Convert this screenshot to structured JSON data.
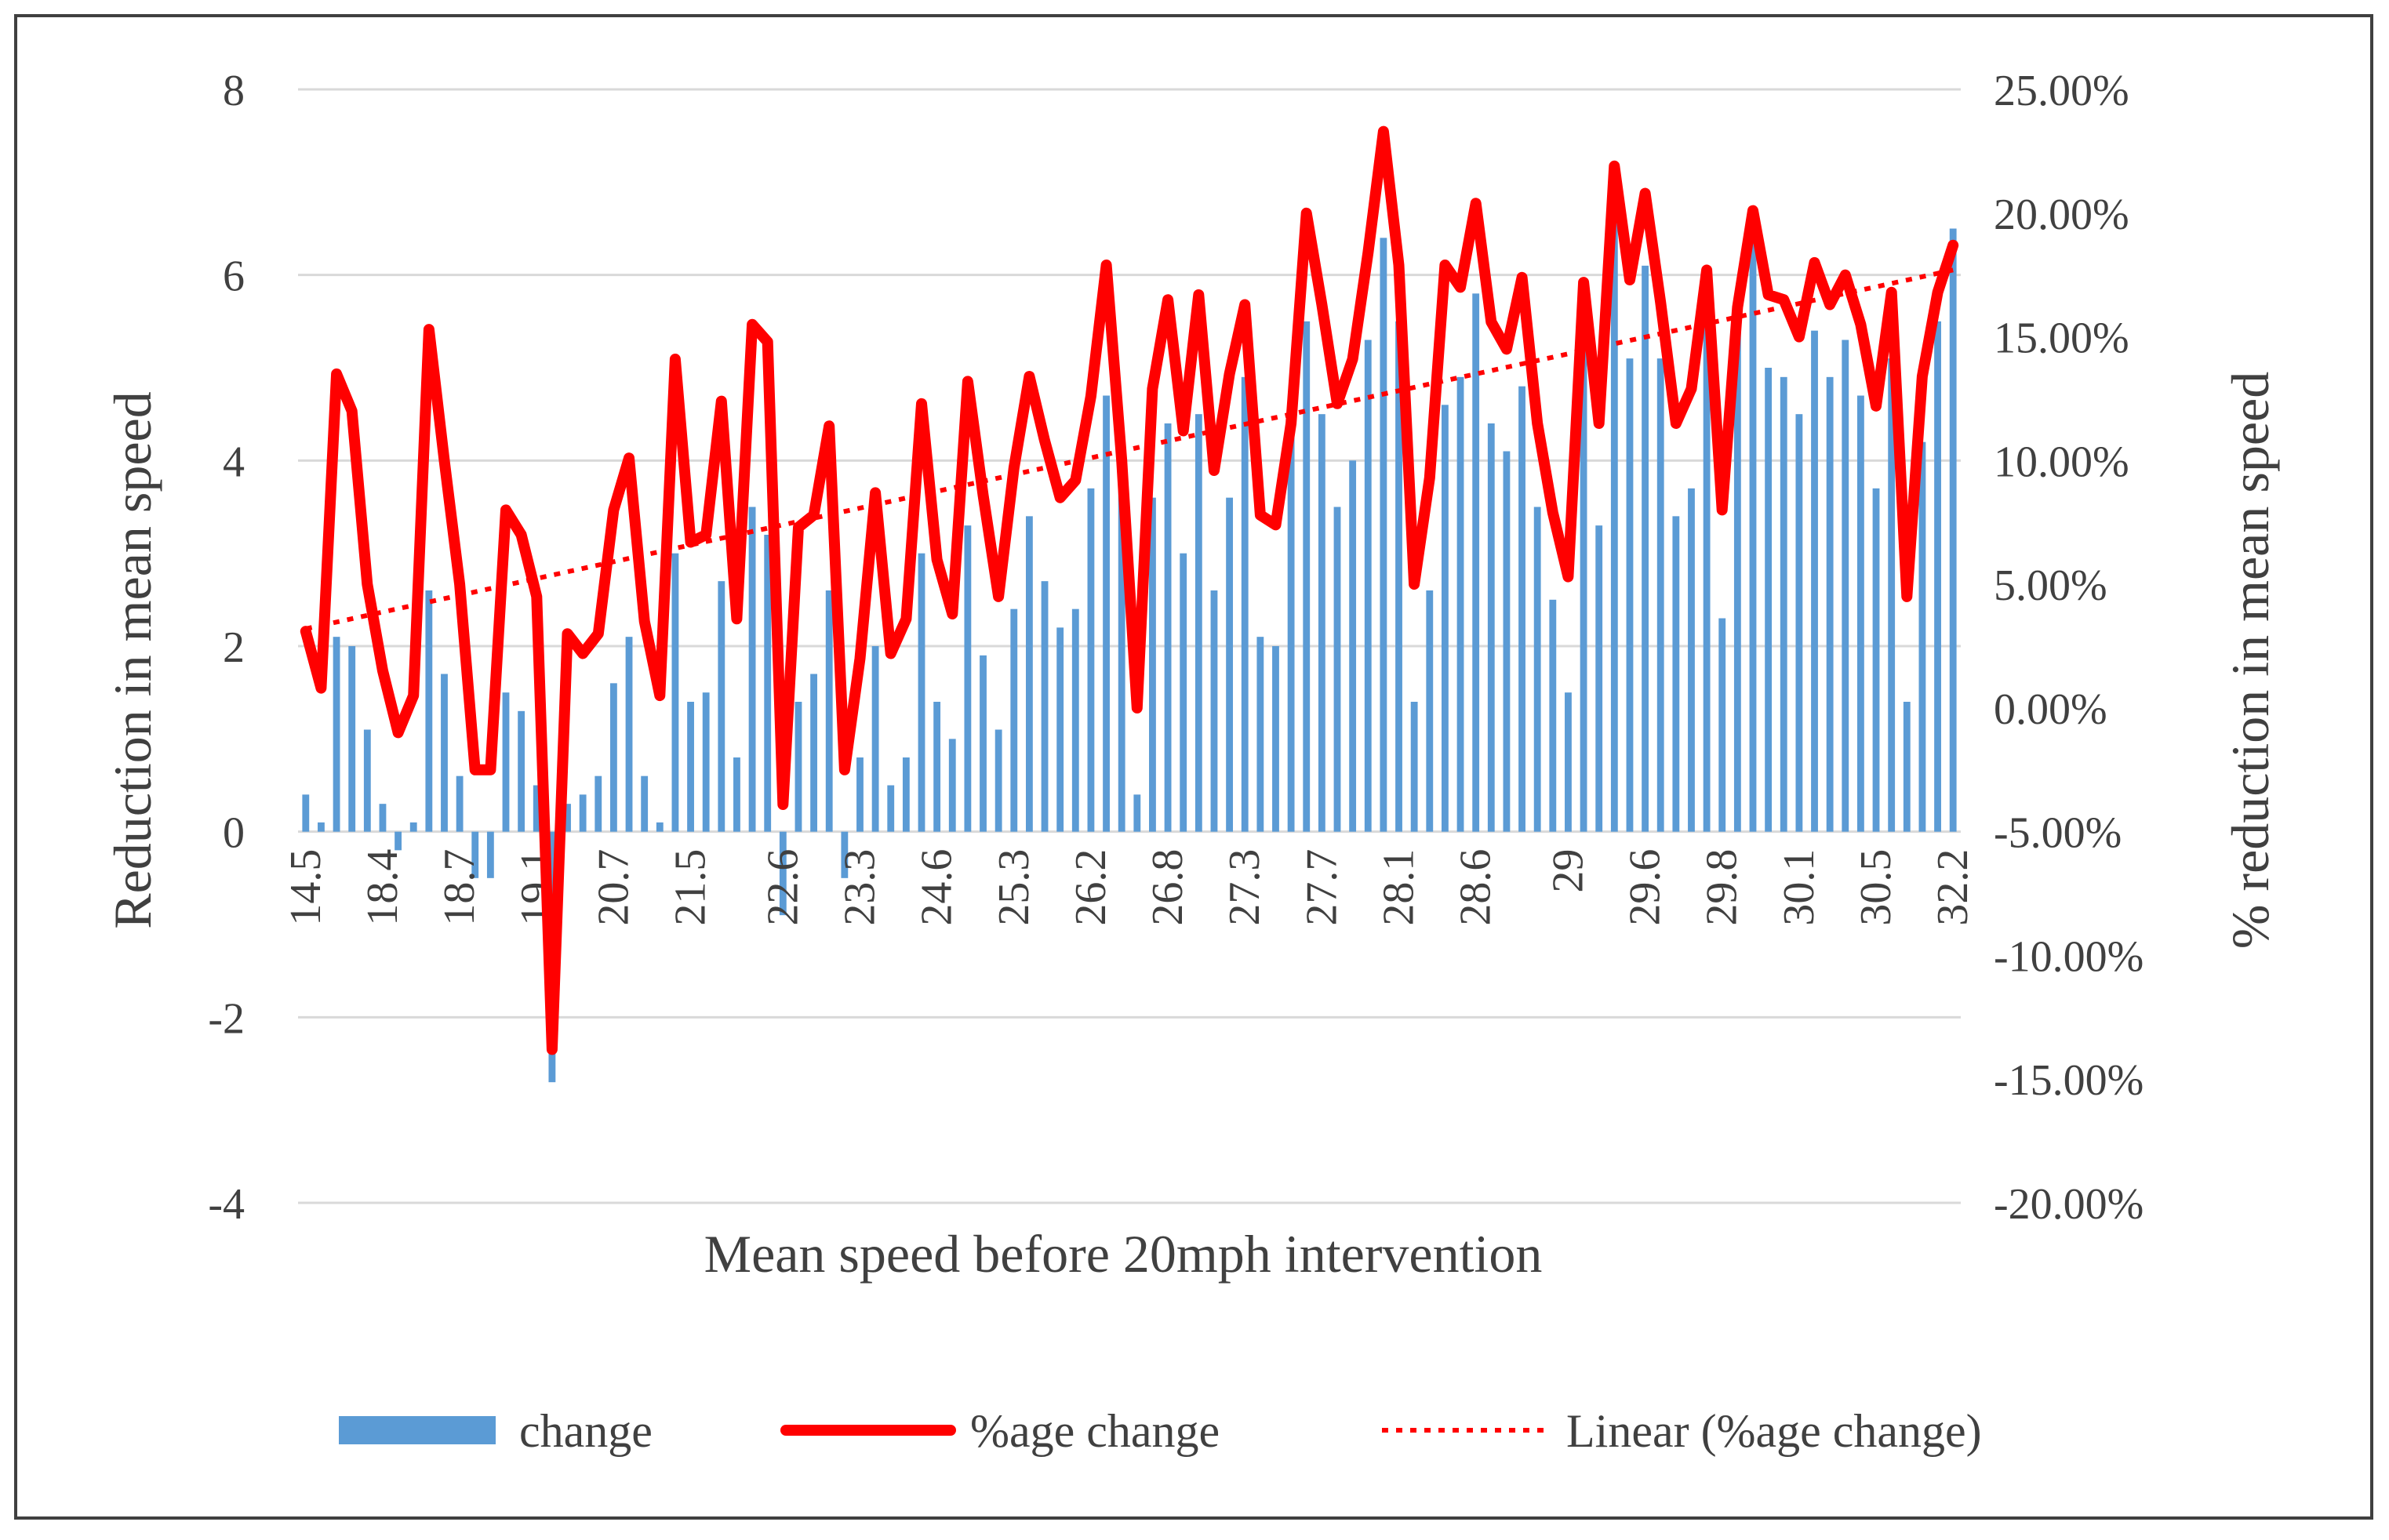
{
  "chart_data": {
    "type": "bar",
    "title": "",
    "xlabel": "Mean speed before 20mph intervention",
    "ylabel": "Reduction in mean speed",
    "y2label": "% reduction in mean speed",
    "ylim": [
      -4,
      8
    ],
    "y2lim": [
      -0.2,
      0.25
    ],
    "yticks": [
      "8",
      "6",
      "4",
      "2",
      "0",
      "-2",
      "-4"
    ],
    "y2ticks": [
      "25.00%",
      "20.00%",
      "15.00%",
      "10.00%",
      "5.00%",
      "0.00%",
      "-5.00%",
      "-10.00%",
      "-15.00%",
      "-20.00%"
    ],
    "x_tick_labels": [
      "14.5",
      "18.4",
      "18.7",
      "19.1",
      "20.7",
      "21.5",
      "22.6",
      "23.3",
      "24.6",
      "25.3",
      "26.2",
      "26.8",
      "27.3",
      "27.7",
      "28.1",
      "28.6",
      "29",
      "29.6",
      "29.8",
      "30.1",
      "30.5",
      "32.2"
    ],
    "gridlines": true,
    "legend_position": "bottom",
    "series": [
      {
        "name": "change",
        "kind": "bar",
        "axis": "left",
        "color": "#5b9bd5",
        "values": [
          0.4,
          0.1,
          2.1,
          2.0,
          1.1,
          0.3,
          -0.2,
          0.1,
          2.6,
          1.7,
          0.6,
          -0.5,
          -0.5,
          1.5,
          1.3,
          0.5,
          -2.7,
          0.3,
          0.4,
          0.6,
          1.6,
          2.1,
          0.6,
          0.1,
          3.0,
          1.4,
          1.5,
          2.7,
          0.8,
          3.5,
          3.2,
          -0.9,
          1.4,
          1.7,
          2.6,
          -0.5,
          0.8,
          2.0,
          0.5,
          0.8,
          3.0,
          1.4,
          1.0,
          3.3,
          1.9,
          1.1,
          2.4,
          3.4,
          2.7,
          2.2,
          2.4,
          3.7,
          4.7,
          3.9,
          0.4,
          3.6,
          4.4,
          3.0,
          4.5,
          2.6,
          3.6,
          4.9,
          2.1,
          2.0,
          4.6,
          5.5,
          4.5,
          3.5,
          4.0,
          5.3,
          6.4,
          5.5,
          1.4,
          2.6,
          4.6,
          4.9,
          5.8,
          4.4,
          4.1,
          4.8,
          3.5,
          2.5,
          1.5,
          5.2,
          3.3,
          6.6,
          5.1,
          6.1,
          5.1,
          3.4,
          3.7,
          5.6,
          2.3,
          5.5,
          6.4,
          5.0,
          4.9,
          4.5,
          5.4,
          4.9,
          5.3,
          4.7,
          3.7,
          5.1,
          1.4,
          4.2,
          5.5,
          6.5
        ]
      },
      {
        "name": "%age change",
        "kind": "line",
        "axis": "right",
        "color": "#ff0000",
        "values": [
          0.031,
          0.008,
          0.135,
          0.12,
          0.05,
          0.015,
          -0.01,
          0.005,
          0.153,
          0.1,
          0.05,
          -0.025,
          -0.025,
          0.08,
          0.07,
          0.045,
          -0.138,
          0.03,
          0.022,
          0.03,
          0.08,
          0.101,
          0.035,
          0.005,
          0.141,
          0.067,
          0.07,
          0.124,
          0.036,
          0.155,
          0.148,
          -0.039,
          0.073,
          0.078,
          0.114,
          -0.025,
          0.02,
          0.087,
          0.022,
          0.036,
          0.123,
          0.06,
          0.038,
          0.132,
          0.086,
          0.045,
          0.097,
          0.134,
          0.108,
          0.085,
          0.092,
          0.126,
          0.179,
          0.1,
          0.0,
          0.129,
          0.165,
          0.112,
          0.167,
          0.096,
          0.135,
          0.163,
          0.078,
          0.074,
          0.115,
          0.2,
          0.163,
          0.123,
          0.141,
          0.184,
          0.233,
          0.179,
          0.05,
          0.093,
          0.179,
          0.17,
          0.204,
          0.156,
          0.145,
          0.174,
          0.115,
          0.079,
          0.053,
          0.172,
          0.115,
          0.219,
          0.173,
          0.208,
          0.164,
          0.115,
          0.129,
          0.177,
          0.08,
          0.162,
          0.201,
          0.167,
          0.165,
          0.15,
          0.18,
          0.163,
          0.175,
          0.155,
          0.122,
          0.168,
          0.045,
          0.134,
          0.168,
          0.187
        ]
      },
      {
        "name": "Linear (%age change)",
        "kind": "trendline",
        "axis": "right",
        "color": "#ff0000",
        "start": 0.032,
        "end": 0.177
      }
    ]
  }
}
